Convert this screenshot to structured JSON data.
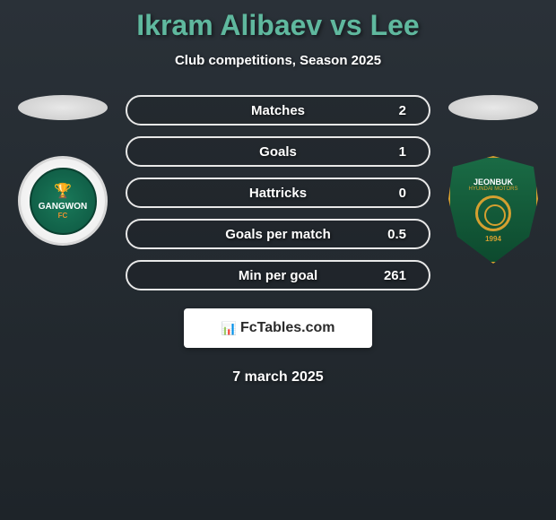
{
  "title": "Ikram Alibaev vs Lee",
  "subtitle": "Club competitions, Season 2025",
  "date": "7 march 2025",
  "brand": {
    "icon": "📊",
    "text": "FcTables.com"
  },
  "teams": {
    "left": {
      "name": "GANGWON",
      "sub": "FC",
      "colors": {
        "primary": "#1a7a5a",
        "accent": "#e89030"
      }
    },
    "right": {
      "name": "JEONBUK",
      "sub": "HYUNDAI MOTORS",
      "year": "1994",
      "colors": {
        "primary": "#1a6b45",
        "accent": "#d4a030"
      }
    }
  },
  "stats": [
    {
      "label": "Matches",
      "value": "2"
    },
    {
      "label": "Goals",
      "value": "1"
    },
    {
      "label": "Hattricks",
      "value": "0"
    },
    {
      "label": "Goals per match",
      "value": "0.5"
    },
    {
      "label": "Min per goal",
      "value": "261"
    }
  ],
  "styling": {
    "title_color": "#5fb89e",
    "text_color": "#ffffff",
    "bar_border": "#e8e8e8",
    "background_start": "#2a3138",
    "background_end": "#1e2429",
    "title_fontsize": 32,
    "subtitle_fontsize": 15,
    "stat_fontsize": 15,
    "date_fontsize": 16
  }
}
